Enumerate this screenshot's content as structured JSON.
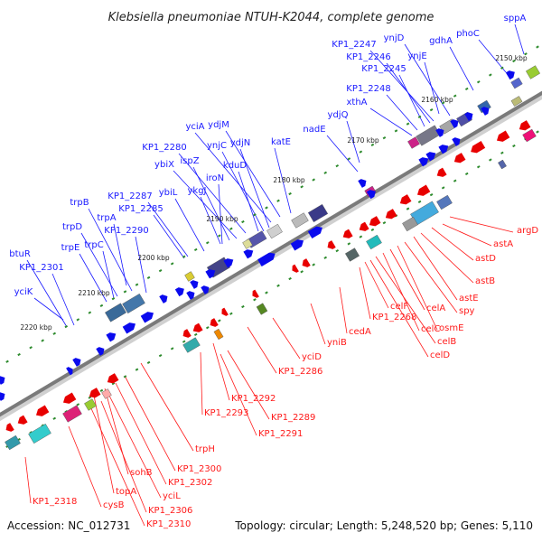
{
  "header": {
    "title": "Klebsiella pneumoniae NTUH-K2044, complete genome"
  },
  "footer": {
    "accession": "Accession: NC_012731",
    "topology": "Topology: circular; Length: 5,248,520 bp; Genes: 5,110"
  },
  "colors": {
    "forward_label": "#1a1aff",
    "reverse_label": "#ff1a1a",
    "forward_arrow": "#0a0aee",
    "reverse_arrow": "#e80000",
    "backbone": "#7a7a7a",
    "tick_dot": "#2e8b2e"
  },
  "scale": [
    {
      "label": "2150 kbp"
    },
    {
      "label": "2160 kbp"
    },
    {
      "label": "2170 kbp"
    },
    {
      "label": "2180 kbp"
    },
    {
      "label": "2190 kbp"
    },
    {
      "label": "2200 kbp"
    },
    {
      "label": "2210 kbp"
    },
    {
      "label": "2220 kbp"
    }
  ],
  "forward_genes": [
    "sppA",
    "phoC",
    "gdhA",
    "ynjD",
    "ynjE",
    "KP1_2247",
    "KP1_2246",
    "KP1_2245",
    "KP1_2248",
    "xthA",
    "ydjQ",
    "nadE",
    "katE",
    "ydjM",
    "yciA",
    "ydjN",
    "ynjC",
    "kduD",
    "KP1_2280",
    "ybiX",
    "ispZ",
    "ykgJ",
    "iroN",
    "ybiL",
    "KP1_2287",
    "KP1_2285",
    "trpB",
    "trpA",
    "trpD",
    "trpC",
    "KP1_2290",
    "trpE",
    "btuR",
    "KP1_2301",
    "yciK"
  ],
  "reverse_genes": [
    "argD",
    "astA",
    "astD",
    "astB",
    "astE",
    "spy",
    "osmE",
    "celA",
    "celC",
    "celB",
    "celD",
    "celF",
    "KP1_2268",
    "cedA",
    "yniB",
    "yciD",
    "KP1_2286",
    "KP1_2292",
    "KP1_2293",
    "KP1_2289",
    "KP1_2291",
    "trpH",
    "KP1_2300",
    "KP1_2302",
    "sohB",
    "topA",
    "yciL",
    "KP1_2306",
    "cysB",
    "KP1_2318",
    "KP1_2310"
  ]
}
